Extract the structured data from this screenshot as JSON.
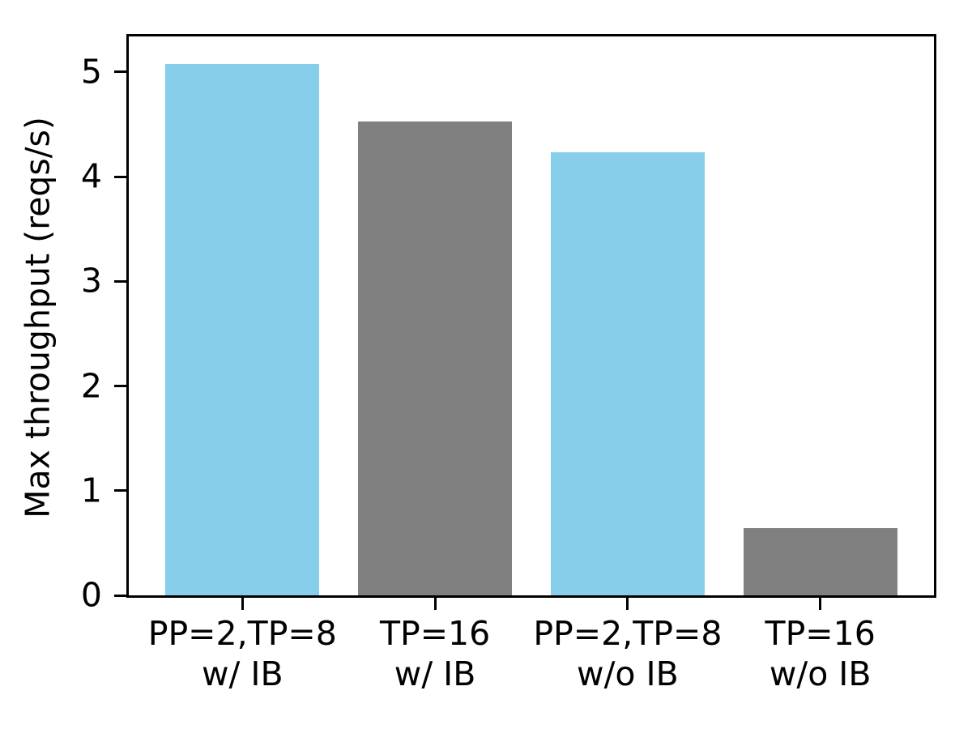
{
  "chart_data": {
    "type": "bar",
    "categories": [
      "PP=2,TP=8\nw/ IB",
      "TP=16\nw/ IB",
      "PP=2,TP=8\nw/o IB",
      "TP=16\nw/o IB"
    ],
    "values": [
      5.08,
      4.53,
      4.23,
      0.64
    ],
    "bar_colors": [
      "#87CEEB",
      "#808080",
      "#87CEEB",
      "#808080"
    ],
    "title": "",
    "xlabel": "",
    "ylabel": "Max throughput (reqs/s)",
    "yticks": [
      0,
      1,
      2,
      3,
      4,
      5
    ],
    "ylim": [
      0,
      5.34
    ],
    "xlim": [
      -0.59,
      3.59
    ],
    "bar_width": 0.8,
    "grid": false,
    "legend": "none",
    "axis_color": "#000000",
    "background_color": "#ffffff"
  }
}
